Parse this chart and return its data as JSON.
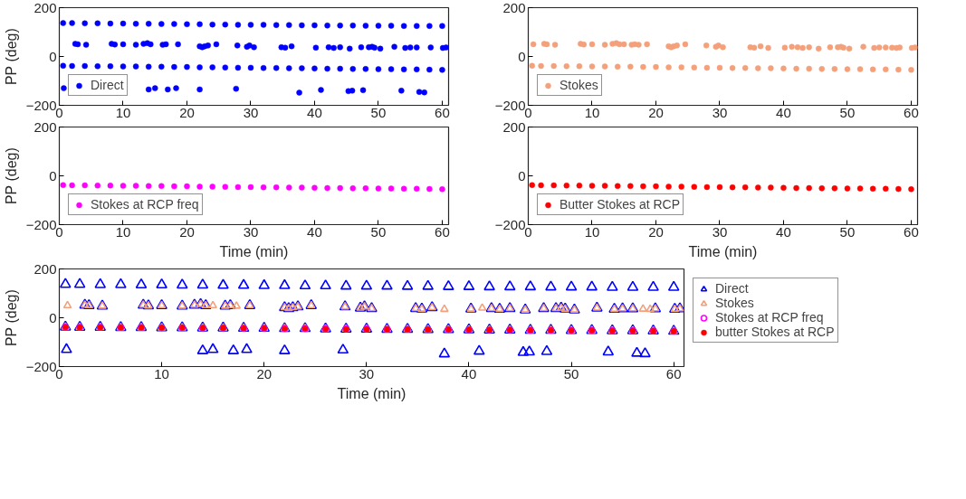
{
  "chart_data": [
    {
      "type": "scatter",
      "ylabel": "PP (deg)",
      "xlim": [
        0,
        61
      ],
      "ylim": [
        -200,
        200
      ],
      "xticks": [
        0,
        10,
        20,
        30,
        40,
        50,
        60
      ],
      "yticks": [
        -200,
        0,
        200
      ],
      "grid": false,
      "legend": "bottom left",
      "marker": "circle",
      "series": [
        {
          "name": "Direct",
          "color": "#0000ff",
          "x": [
            0.6,
            2,
            4,
            6,
            8,
            10,
            12,
            14,
            16,
            18,
            20,
            22,
            24,
            26,
            28,
            30,
            32,
            34,
            36,
            38,
            40,
            42,
            44,
            46,
            48,
            50,
            52,
            54,
            56,
            58,
            60,
            0.6,
            2,
            4,
            6,
            8,
            10,
            12,
            14,
            16,
            18,
            20,
            22,
            24,
            26,
            28,
            30,
            32,
            34,
            36,
            38,
            40,
            42,
            44,
            46,
            48,
            50,
            52,
            54,
            56,
            58,
            60,
            2.5,
            2.9,
            4.2,
            8.2,
            8.7,
            10,
            12,
            13.2,
            13.8,
            14.3,
            16.2,
            16.7,
            18.6,
            22,
            22.4,
            22.8,
            23.3,
            24.6,
            27.9,
            29.4,
            29.8,
            30.5,
            34.8,
            35.4,
            36.4,
            40.2,
            42.2,
            43,
            44,
            45.5,
            47.3,
            48.5,
            49,
            49.4,
            50.3,
            52.5,
            54.2,
            55,
            56,
            58.2,
            60.1,
            60.6,
            0.7,
            14,
            15,
            17,
            18.3,
            22,
            27.7,
            37.6,
            41,
            45.3,
            45.9,
            47.6,
            53.6,
            56.4,
            57.2
          ],
          "values": [
            137,
            137,
            136,
            136,
            135,
            135,
            134,
            134,
            133,
            133,
            132,
            132,
            131,
            131,
            130,
            130,
            130,
            129,
            129,
            128,
            128,
            127,
            127,
            127,
            126,
            126,
            126,
            125,
            125,
            125,
            125,
            -38,
            -39,
            -39,
            -40,
            -40,
            -41,
            -41,
            -42,
            -42,
            -43,
            -43,
            -44,
            -44,
            -45,
            -46,
            -46,
            -47,
            -47,
            -48,
            -48,
            -49,
            -50,
            -50,
            -51,
            -51,
            -52,
            -52,
            -53,
            -53,
            -54,
            -55,
            52,
            50,
            48,
            52,
            49,
            50,
            48,
            52,
            55,
            50,
            48,
            50,
            50,
            42,
            38,
            42,
            45,
            50,
            45,
            40,
            45,
            38,
            38,
            36,
            42,
            36,
            38,
            35,
            38,
            32,
            38,
            38,
            40,
            36,
            32,
            40,
            35,
            37,
            37,
            37,
            35,
            37,
            -130,
            -135,
            -130,
            -135,
            -130,
            -135,
            -132,
            -148,
            -137,
            -142,
            -140,
            -138,
            -140,
            -145,
            -147
          ]
        }
      ]
    },
    {
      "type": "scatter",
      "xlim": [
        0,
        61
      ],
      "ylim": [
        -200,
        200
      ],
      "xticks": [
        0,
        10,
        20,
        30,
        40,
        50,
        60
      ],
      "yticks": [
        -200,
        0,
        200
      ],
      "grid": false,
      "legend": "bottom left",
      "marker": "circle",
      "series": [
        {
          "name": "Stokes",
          "color": "#f4a07a",
          "x": [
            0.6,
            2,
            4,
            6,
            8,
            10,
            12,
            14,
            16,
            18,
            20,
            22,
            24,
            26,
            28,
            30,
            32,
            34,
            36,
            38,
            40,
            42,
            44,
            46,
            48,
            50,
            52,
            54,
            56,
            58,
            60,
            0.8,
            2.5,
            2.9,
            4.2,
            8.2,
            8.7,
            10,
            12,
            13.2,
            13.8,
            14.3,
            15,
            16.2,
            16.7,
            17.3,
            18.6,
            22,
            22.4,
            22.8,
            23.3,
            24.6,
            27.9,
            29.4,
            29.8,
            30.5,
            34.8,
            35.4,
            36.4,
            37.6,
            40.2,
            41.3,
            42.2,
            43,
            44,
            45.5,
            47.3,
            48.5,
            49,
            49.4,
            50.3,
            52.5,
            54.2,
            55,
            56,
            57,
            57.7,
            58.2,
            60.1,
            60.6
          ],
          "values": [
            -38,
            -39,
            -39,
            -40,
            -40,
            -41,
            -41,
            -42,
            -42,
            -43,
            -43,
            -44,
            -44,
            -45,
            -46,
            -46,
            -47,
            -47,
            -48,
            -48,
            -49,
            -50,
            -50,
            -51,
            -51,
            -52,
            -52,
            -53,
            -53,
            -54,
            -55,
            50,
            52,
            50,
            48,
            52,
            49,
            50,
            48,
            52,
            55,
            50,
            50,
            48,
            50,
            48,
            50,
            42,
            38,
            42,
            45,
            50,
            45,
            40,
            45,
            38,
            38,
            36,
            42,
            35,
            36,
            40,
            38,
            35,
            38,
            32,
            38,
            38,
            40,
            36,
            32,
            40,
            35,
            37,
            37,
            36,
            35,
            37,
            35,
            37
          ]
        }
      ]
    },
    {
      "type": "scatter",
      "ylabel": "PP (deg)",
      "xlabel": "Time (min)",
      "xlim": [
        0,
        61
      ],
      "ylim": [
        -200,
        200
      ],
      "xticks": [
        0,
        10,
        20,
        30,
        40,
        50,
        60
      ],
      "yticks": [
        -200,
        0,
        200
      ],
      "grid": false,
      "legend": "bottom left",
      "marker": "circle",
      "series": [
        {
          "name": "Stokes at RCP freq",
          "color": "#ff00ff",
          "x": [
            0.6,
            2,
            4,
            6,
            8,
            10,
            12,
            14,
            16,
            18,
            20,
            22,
            24,
            26,
            28,
            30,
            32,
            34,
            36,
            38,
            40,
            42,
            44,
            46,
            48,
            50,
            52,
            54,
            56,
            58,
            60
          ],
          "values": [
            -38,
            -39,
            -39,
            -40,
            -40,
            -41,
            -41,
            -42,
            -42,
            -43,
            -43,
            -44,
            -44,
            -45,
            -46,
            -46,
            -47,
            -47,
            -48,
            -48,
            -49,
            -50,
            -50,
            -51,
            -51,
            -52,
            -52,
            -53,
            -53,
            -54,
            -55
          ]
        }
      ]
    },
    {
      "type": "scatter",
      "xlabel": "Time (min)",
      "xlim": [
        0,
        61
      ],
      "ylim": [
        -200,
        200
      ],
      "xticks": [
        0,
        10,
        20,
        30,
        40,
        50,
        60
      ],
      "yticks": [
        -200,
        0,
        200
      ],
      "grid": false,
      "legend": "bottom left",
      "marker": "circle",
      "series": [
        {
          "name": "Butter Stokes at RCP",
          "color": "#ff0000",
          "x": [
            0.6,
            2,
            4,
            6,
            8,
            10,
            12,
            14,
            16,
            18,
            20,
            22,
            24,
            26,
            28,
            30,
            32,
            34,
            36,
            38,
            40,
            42,
            44,
            46,
            48,
            50,
            52,
            54,
            56,
            58,
            60
          ],
          "values": [
            -38,
            -39,
            -39,
            -40,
            -40,
            -41,
            -41,
            -42,
            -42,
            -43,
            -43,
            -44,
            -44,
            -45,
            -46,
            -46,
            -47,
            -47,
            -48,
            -48,
            -49,
            -50,
            -50,
            -51,
            -51,
            -52,
            -52,
            -53,
            -53,
            -54,
            -55
          ]
        }
      ]
    },
    {
      "type": "scatter",
      "ylabel": "PP (deg)",
      "xlabel": "Time (min)",
      "xlim": [
        0,
        61
      ],
      "ylim": [
        -200,
        200
      ],
      "xticks": [
        0,
        10,
        20,
        30,
        40,
        50,
        60
      ],
      "yticks": [
        -200,
        0,
        200
      ],
      "grid": false,
      "legend": "right",
      "series": [
        {
          "name": "Direct",
          "color": "#0000ff",
          "marker": "triangle",
          "x": [
            0.6,
            2,
            4,
            6,
            8,
            10,
            12,
            14,
            16,
            18,
            20,
            22,
            24,
            26,
            28,
            30,
            32,
            34,
            36,
            38,
            40,
            42,
            44,
            46,
            48,
            50,
            52,
            54,
            56,
            58,
            60,
            0.6,
            2,
            4,
            6,
            8,
            10,
            12,
            14,
            16,
            18,
            20,
            22,
            24,
            26,
            28,
            30,
            32,
            34,
            36,
            38,
            40,
            42,
            44,
            46,
            48,
            50,
            52,
            54,
            56,
            58,
            60,
            2.5,
            2.9,
            4.2,
            8.2,
            8.7,
            10,
            12,
            13.2,
            13.8,
            14.3,
            16.2,
            16.7,
            18.6,
            22,
            22.4,
            22.8,
            23.3,
            24.6,
            27.9,
            29.4,
            29.8,
            30.5,
            34.8,
            35.4,
            36.4,
            40.2,
            42.2,
            43,
            44,
            45.5,
            47.3,
            48.5,
            49,
            49.4,
            50.3,
            52.5,
            54.2,
            55,
            56,
            58.2,
            60.1,
            60.6,
            0.7,
            14,
            15,
            17,
            18.3,
            22,
            27.7,
            37.6,
            41,
            45.3,
            45.9,
            47.6,
            53.6,
            56.4,
            57.2
          ],
          "values": [
            137,
            137,
            136,
            136,
            135,
            135,
            134,
            134,
            133,
            133,
            132,
            132,
            131,
            131,
            130,
            130,
            130,
            129,
            129,
            128,
            128,
            127,
            127,
            127,
            126,
            126,
            126,
            125,
            125,
            125,
            125,
            -38,
            -39,
            -39,
            -40,
            -40,
            -41,
            -41,
            -42,
            -42,
            -43,
            -43,
            -44,
            -44,
            -45,
            -46,
            -46,
            -47,
            -47,
            -48,
            -48,
            -49,
            -50,
            -50,
            -51,
            -51,
            -52,
            -52,
            -53,
            -53,
            -54,
            -55,
            52,
            50,
            48,
            52,
            49,
            50,
            48,
            52,
            55,
            50,
            48,
            50,
            50,
            42,
            38,
            42,
            45,
            50,
            45,
            40,
            45,
            38,
            38,
            36,
            42,
            36,
            38,
            35,
            38,
            32,
            38,
            38,
            40,
            36,
            32,
            40,
            35,
            37,
            37,
            37,
            35,
            37,
            -130,
            -135,
            -130,
            -135,
            -130,
            -135,
            -132,
            -148,
            -137,
            -142,
            -140,
            -138,
            -140,
            -145,
            -147
          ]
        },
        {
          "name": "Stokes",
          "color": "#f4a07a",
          "marker": "triangle",
          "x": [
            0.6,
            2,
            4,
            6,
            8,
            10,
            12,
            14,
            16,
            18,
            20,
            22,
            24,
            26,
            28,
            30,
            32,
            34,
            36,
            38,
            40,
            42,
            44,
            46,
            48,
            50,
            52,
            54,
            56,
            58,
            60,
            0.8,
            2.5,
            2.9,
            4.2,
            8.2,
            8.7,
            10,
            12,
            13.2,
            13.8,
            14.3,
            15,
            16.2,
            16.7,
            17.3,
            18.6,
            22,
            22.4,
            22.8,
            23.3,
            24.6,
            27.9,
            29.4,
            29.8,
            30.5,
            34.8,
            35.4,
            36.4,
            37.6,
            40.2,
            41.3,
            42.2,
            43,
            44,
            45.5,
            47.3,
            48.5,
            49,
            49.4,
            50.3,
            52.5,
            54.2,
            55,
            56,
            57,
            57.7,
            58.2,
            60.1,
            60.6
          ],
          "values": [
            -38,
            -39,
            -39,
            -40,
            -40,
            -41,
            -41,
            -42,
            -42,
            -43,
            -43,
            -44,
            -44,
            -45,
            -46,
            -46,
            -47,
            -47,
            -48,
            -48,
            -49,
            -50,
            -50,
            -51,
            -51,
            -52,
            -52,
            -53,
            -53,
            -54,
            -55,
            50,
            52,
            50,
            48,
            52,
            49,
            50,
            48,
            52,
            55,
            50,
            50,
            48,
            50,
            48,
            50,
            42,
            38,
            42,
            45,
            50,
            45,
            40,
            45,
            38,
            38,
            36,
            42,
            35,
            36,
            40,
            38,
            35,
            38,
            32,
            38,
            38,
            40,
            36,
            32,
            40,
            35,
            37,
            37,
            36,
            35,
            37,
            35,
            37
          ]
        },
        {
          "name": "Stokes at RCP freq",
          "color": "#ff00ff",
          "marker": "circle",
          "x": [
            0.6,
            2,
            4,
            6,
            8,
            10,
            12,
            14,
            16,
            18,
            20,
            22,
            24,
            26,
            28,
            30,
            32,
            34,
            36,
            38,
            40,
            42,
            44,
            46,
            48,
            50,
            52,
            54,
            56,
            58,
            60
          ],
          "values": [
            -38,
            -39,
            -39,
            -40,
            -40,
            -41,
            -41,
            -42,
            -42,
            -43,
            -43,
            -44,
            -44,
            -45,
            -46,
            -46,
            -47,
            -47,
            -48,
            -48,
            -49,
            -50,
            -50,
            -51,
            -51,
            -52,
            -52,
            -53,
            -53,
            -54,
            -55
          ]
        },
        {
          "name": "butter Stokes at RCP",
          "color": "#ff0000",
          "marker": "circle",
          "x": [
            0.6,
            2,
            4,
            6,
            8,
            10,
            12,
            14,
            16,
            18,
            20,
            22,
            24,
            26,
            28,
            30,
            32,
            34,
            36,
            38,
            40,
            42,
            44,
            46,
            48,
            50,
            52,
            54,
            56,
            58,
            60
          ],
          "values": [
            -38,
            -39,
            -39,
            -40,
            -40,
            -41,
            -41,
            -42,
            -42,
            -43,
            -43,
            -44,
            -44,
            -45,
            -46,
            -46,
            -47,
            -47,
            -48,
            -48,
            -49,
            -50,
            -50,
            -51,
            -51,
            -52,
            -52,
            -53,
            -53,
            -54,
            -55
          ]
        }
      ]
    }
  ]
}
